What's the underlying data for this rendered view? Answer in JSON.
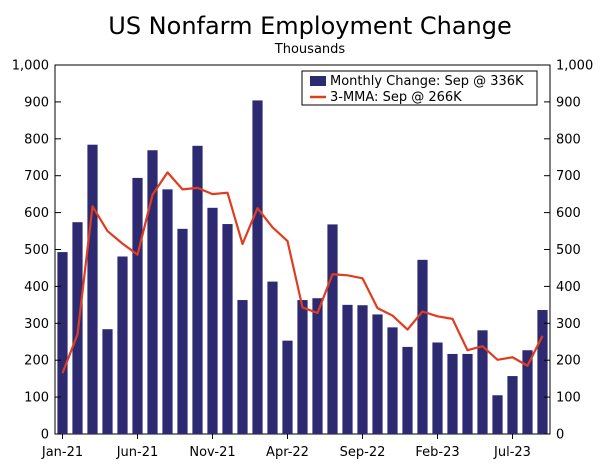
{
  "chart_data": {
    "type": "bar",
    "title": "US Nonfarm Employment Change",
    "subtitle": "Thousands",
    "ylim": [
      0,
      1000
    ],
    "yticks": [
      0,
      100,
      200,
      300,
      400,
      500,
      600,
      700,
      800,
      900,
      1000
    ],
    "ytick_labels": [
      "0",
      "100",
      "200",
      "300",
      "400",
      "500",
      "600",
      "700",
      "800",
      "900",
      "1,000"
    ],
    "x_tick_labels": [
      "Jan-21",
      "Jun-21",
      "Nov-21",
      "Apr-22",
      "Sep-22",
      "Feb-23",
      "Jul-23"
    ],
    "x_tick_indices": [
      0,
      5,
      10,
      15,
      20,
      25,
      30
    ],
    "legend_position": "top-right",
    "grid": false,
    "series": [
      {
        "name": "Monthly Change: Sep @ 336K",
        "type": "bar",
        "color": "#2e2a72",
        "values": [
          493,
          574,
          784,
          284,
          481,
          694,
          769,
          663,
          556,
          781,
          613,
          569,
          363,
          904,
          413,
          253,
          363,
          368,
          568,
          350,
          349,
          324,
          289,
          236,
          472,
          248,
          217,
          217,
          281,
          105,
          157,
          227,
          336
        ]
      },
      {
        "name": "3-MMA: Sep @ 266K",
        "type": "line",
        "color": "#e03c1f",
        "values": [
          165,
          270,
          617,
          550,
          516,
          486,
          648,
          709,
          663,
          667,
          650,
          654,
          515,
          612,
          560,
          523,
          343,
          328,
          433,
          430,
          422,
          341,
          321,
          283,
          332,
          319,
          312,
          227,
          238,
          201,
          208,
          185,
          266
        ]
      }
    ]
  }
}
